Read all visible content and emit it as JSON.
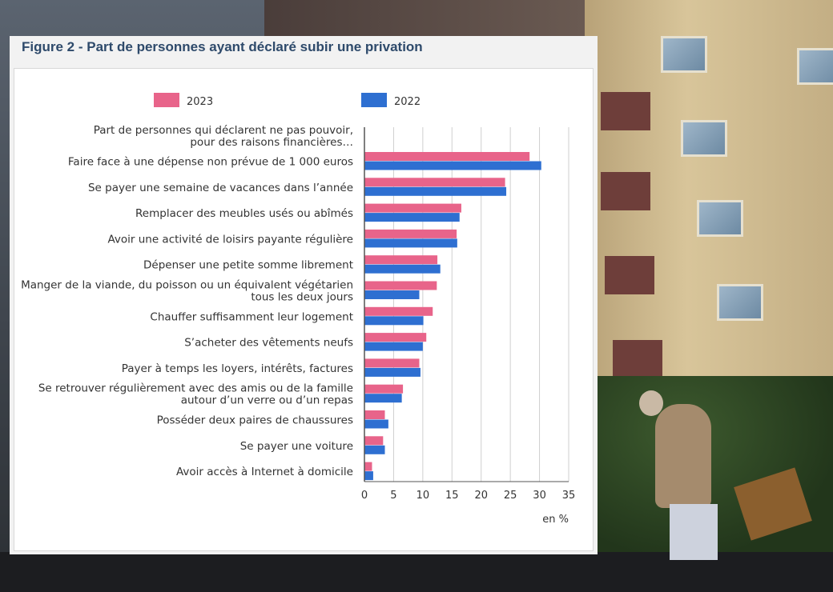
{
  "figure": {
    "title": "Figure 2 - Part de personnes ayant déclaré subir une privation"
  },
  "chart_data": {
    "type": "bar",
    "orientation": "horizontal",
    "header_category": [
      "Part de personnes qui déclarent ne pas pouvoir,",
      "pour des raisons financières…"
    ],
    "categories": [
      [
        "Faire face à une dépense non prévue de 1 000 euros"
      ],
      [
        "Se payer une semaine de vacances dans l’année"
      ],
      [
        "Remplacer des meubles usés ou abîmés"
      ],
      [
        "Avoir une activité de loisirs payante régulière"
      ],
      [
        "Dépenser une petite somme librement"
      ],
      [
        "Manger de la viande, du poisson ou un équivalent végétarien",
        "tous les deux jours"
      ],
      [
        "Chauffer suffisamment leur logement"
      ],
      [
        "S’acheter des vêtements neufs"
      ],
      [
        "Payer à temps les loyers, intérêts, factures"
      ],
      [
        "Se retrouver régulièrement avec des amis ou de la famille",
        "autour d’un verre ou d’un repas"
      ],
      [
        "Posséder deux paires de chaussures"
      ],
      [
        "Se payer une voiture"
      ],
      [
        "Avoir accès à Internet à domicile"
      ]
    ],
    "series": [
      {
        "name": "2023",
        "color": "#e8648a",
        "values": [
          28.3,
          24.1,
          16.6,
          15.8,
          12.5,
          12.4,
          11.7,
          10.6,
          9.4,
          6.6,
          3.5,
          3.2,
          1.3
        ]
      },
      {
        "name": "2022",
        "color": "#2e6fd1",
        "values": [
          30.3,
          24.3,
          16.3,
          15.9,
          13.0,
          9.4,
          10.1,
          10.0,
          9.6,
          6.4,
          4.1,
          3.5,
          1.5
        ]
      }
    ],
    "xlim": [
      0,
      35
    ],
    "xticks": [
      0,
      5,
      10,
      15,
      20,
      25,
      30,
      35
    ],
    "unit_label": "en %",
    "grid": true,
    "legend_position": "top"
  }
}
